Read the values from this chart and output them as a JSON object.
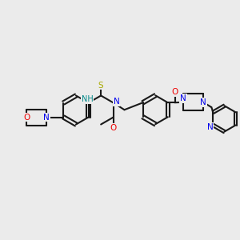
{
  "bg_color": "#ebebeb",
  "bond_color": "#1a1a1a",
  "N_color": "#0000ee",
  "O_color": "#ee0000",
  "S_color": "#aaaa00",
  "NH_color": "#008888",
  "figsize": [
    3.0,
    3.0
  ],
  "dpi": 100,
  "xlim": [
    0,
    12
  ],
  "ylim": [
    0,
    12
  ]
}
